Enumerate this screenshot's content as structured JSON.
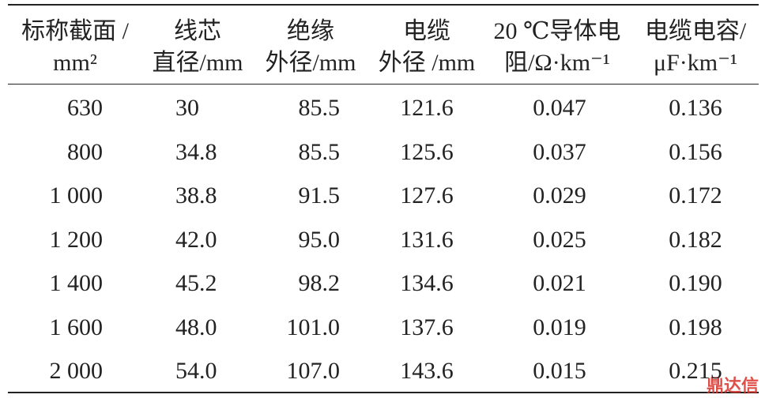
{
  "table": {
    "header": [
      [
        "标称截面 /",
        "mm²"
      ],
      [
        "线芯",
        "直径/mm"
      ],
      [
        "绝缘",
        "外径/mm"
      ],
      [
        "电缆",
        "外径 /mm"
      ],
      [
        "20 ℃导体电",
        "阻/Ω·km⁻¹"
      ],
      [
        "电缆电容/",
        "μF·km⁻¹"
      ]
    ],
    "rows": [
      [
        "630",
        "30",
        "85.5",
        "121.6",
        "0.047",
        "0.136"
      ],
      [
        "800",
        "34.8",
        "85.5",
        "125.6",
        "0.037",
        "0.156"
      ],
      [
        "1 000",
        "38.8",
        "91.5",
        "127.6",
        "0.029",
        "0.172"
      ],
      [
        "1 200",
        "42.0",
        "95.0",
        "131.6",
        "0.025",
        "0.182"
      ],
      [
        "1 400",
        "45.2",
        "98.2",
        "134.6",
        "0.021",
        "0.190"
      ],
      [
        "1 600",
        "48.0",
        "101.0",
        "137.6",
        "0.019",
        "0.198"
      ],
      [
        "2 000",
        "54.0",
        "107.0",
        "143.6",
        "0.015",
        "0.215"
      ]
    ]
  },
  "watermark": "鼎达信"
}
